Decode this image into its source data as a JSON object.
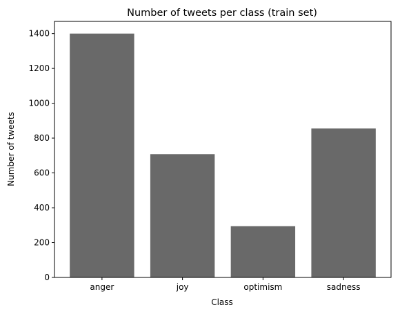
{
  "chart_data": {
    "type": "bar",
    "title": "Number of tweets per class (train set)",
    "xlabel": "Class",
    "ylabel": "Number of tweets",
    "categories": [
      "anger",
      "joy",
      "optimism",
      "sadness"
    ],
    "values": [
      1400,
      708,
      294,
      855
    ],
    "ylim": [
      0,
      1470
    ],
    "yticks": [
      0,
      200,
      400,
      600,
      800,
      1000,
      1200,
      1400
    ],
    "bar_color": "#696969",
    "grid": false,
    "legend": "none"
  }
}
